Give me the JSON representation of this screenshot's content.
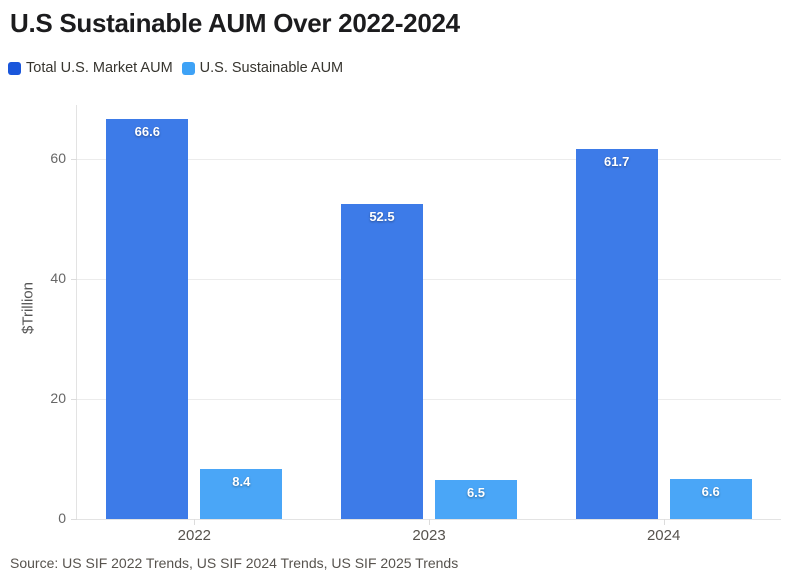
{
  "title": "U.S Sustainable AUM Over 2022-2024",
  "legend": {
    "items": [
      {
        "label": "Total U.S. Market AUM",
        "color": "#1a56db"
      },
      {
        "label": "U.S. Sustainable AUM",
        "color": "#3ea2f6"
      }
    ]
  },
  "axes": {
    "ylabel": "$Trillion"
  },
  "source": "Source: US SIF 2022 Trends, US SIF 2024 Trends, US SIF 2025 Trends",
  "chart_data": {
    "type": "bar",
    "title": "U.S Sustainable AUM Over 2022-2024",
    "categories": [
      "2022",
      "2023",
      "2024"
    ],
    "series": [
      {
        "name": "Total U.S. Market AUM",
        "color": "#3d7be8",
        "values": [
          66.6,
          52.5,
          61.7
        ],
        "labels": [
          "66.6",
          "52.5",
          "61.7"
        ]
      },
      {
        "name": "U.S. Sustainable AUM",
        "color": "#4aa6f7",
        "values": [
          8.4,
          6.5,
          6.6
        ],
        "labels": [
          "8.4",
          "6.5",
          "6.6"
        ]
      }
    ],
    "xlabel": "",
    "ylabel": "$Trillion",
    "ylim": [
      0,
      69
    ],
    "yticks": [
      0,
      20,
      40,
      60
    ],
    "grid": true,
    "legend_position": "top-left",
    "bar_value_labels": "inside-top",
    "colors": {
      "gridline": "#ececec",
      "axis_line": "#e3e3e3",
      "tick_text": "#666666",
      "title_text": "#1c1c1e",
      "source_text": "#57534e",
      "background": "#ffffff"
    }
  }
}
